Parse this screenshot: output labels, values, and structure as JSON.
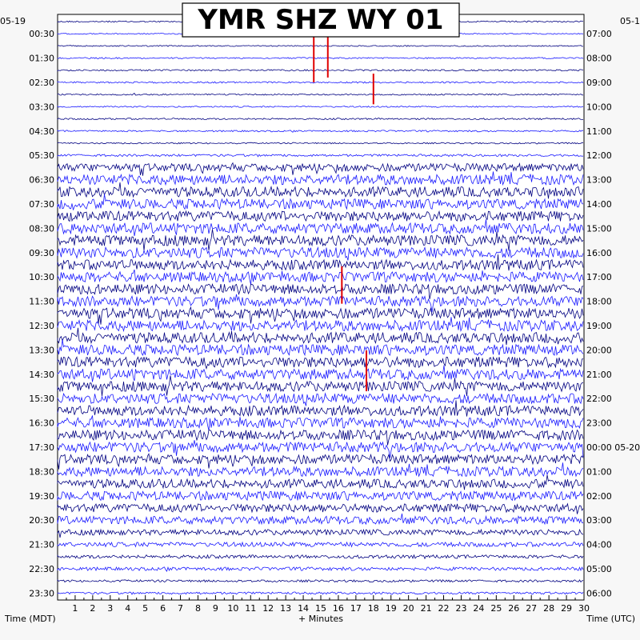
{
  "chart_data": {
    "type": "line",
    "title": "YMR SHZ WY 01",
    "date_left": "05-19",
    "date_right": "05-1",
    "date_right_next": "05-20",
    "xlabel": "+ Minutes",
    "xlabel_left": "Time (MDT)",
    "xlabel_right": "Time (UTC)",
    "xlim": [
      0,
      30
    ],
    "x_ticks": [
      "1",
      "2",
      "3",
      "4",
      "5",
      "6",
      "7",
      "8",
      "9",
      "10",
      "11",
      "12",
      "13",
      "14",
      "15",
      "16",
      "17",
      "18",
      "19",
      "20",
      "21",
      "22",
      "23",
      "24",
      "25",
      "26",
      "27",
      "28",
      "29",
      "30"
    ],
    "left_labels": [
      "00:30",
      "01:30",
      "02:30",
      "03:30",
      "04:30",
      "05:30",
      "06:30",
      "07:30",
      "08:30",
      "09:30",
      "10:30",
      "11:30",
      "12:30",
      "13:30",
      "14:30",
      "15:30",
      "16:30",
      "17:30",
      "18:30",
      "19:30",
      "20:30",
      "21:30",
      "22:30",
      "23:30"
    ],
    "right_labels": [
      "07:00",
      "08:00",
      "09:00",
      "10:00",
      "11:00",
      "12:00",
      "13:00",
      "14:00",
      "15:00",
      "16:00",
      "17:00",
      "18:00",
      "19:00",
      "20:00",
      "21:00",
      "22:00",
      "23:00",
      "00:00",
      "01:00",
      "02:00",
      "03:00",
      "04:00",
      "05:00",
      "06:00"
    ],
    "trace_count": 48,
    "trace_colors": [
      "#000080",
      "#1a1aff"
    ],
    "event_color": "#e00000",
    "trace_noise_level": [
      0.12,
      0.1,
      0.1,
      0.12,
      0.14,
      0.14,
      0.12,
      0.12,
      0.14,
      0.14,
      0.12,
      0.2,
      0.7,
      0.9,
      0.9,
      0.9,
      0.9,
      0.95,
      0.95,
      0.95,
      0.9,
      0.9,
      0.9,
      0.9,
      0.95,
      0.95,
      0.95,
      0.95,
      0.95,
      0.95,
      0.9,
      0.9,
      0.9,
      0.9,
      0.9,
      0.9,
      0.85,
      0.85,
      0.8,
      0.8,
      0.75,
      0.7,
      0.5,
      0.4,
      0.3,
      0.3,
      0.2,
      0.2
    ],
    "events": [
      {
        "trace": 2,
        "minute": 14.6,
        "amplitude": 3.0
      },
      {
        "trace": 2,
        "minute": 15.4,
        "amplitude": 2.6
      },
      {
        "trace": 5,
        "minute": 18.0,
        "amplitude": 1.8
      },
      {
        "trace": 21,
        "minute": 16.2,
        "amplitude": 2.2
      },
      {
        "trace": 28,
        "minute": 17.6,
        "amplitude": 2.4
      }
    ]
  }
}
